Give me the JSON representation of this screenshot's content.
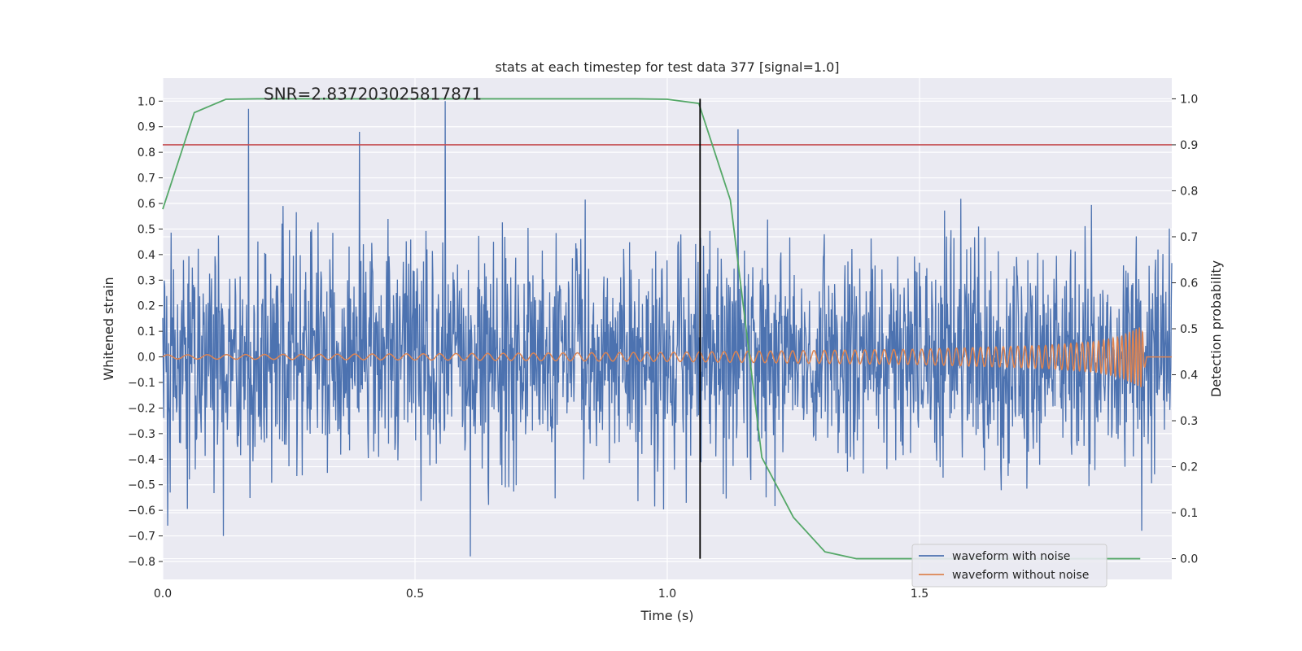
{
  "chart_data": {
    "type": "line",
    "title": "stats at each timestep for test data 377 [signal=1.0]",
    "xlabel": "Time (s)",
    "ylabel_left": "Whitened strain",
    "ylabel_right": "Detection probability",
    "xlim": [
      0.0,
      2.0
    ],
    "ylim_left": [
      -0.87,
      1.09
    ],
    "ylim_right": [
      -0.045,
      1.045
    ],
    "xticks": [
      "0.0",
      "0.5",
      "1.0",
      "1.5"
    ],
    "xtick_values": [
      0.0,
      0.5,
      1.0,
      1.5
    ],
    "yticks_left": [
      "−0.8",
      "−0.7",
      "−0.6",
      "−0.5",
      "−0.4",
      "−0.3",
      "−0.2",
      "−0.1",
      "0.0",
      "0.1",
      "0.2",
      "0.3",
      "0.4",
      "0.5",
      "0.6",
      "0.7",
      "0.8",
      "0.9",
      "1.0"
    ],
    "ytick_values_left": [
      -0.8,
      -0.7,
      -0.6,
      -0.5,
      -0.4,
      -0.3,
      -0.2,
      -0.1,
      0.0,
      0.1,
      0.2,
      0.3,
      0.4,
      0.5,
      0.6,
      0.7,
      0.8,
      0.9,
      1.0
    ],
    "yticks_right": [
      "0.0",
      "0.1",
      "0.2",
      "0.3",
      "0.4",
      "0.5",
      "0.6",
      "0.7",
      "0.8",
      "0.9",
      "1.0"
    ],
    "ytick_values_right": [
      0.0,
      0.1,
      0.2,
      0.3,
      0.4,
      0.5,
      0.6,
      0.7,
      0.8,
      0.9,
      1.0
    ],
    "grid": true,
    "legend_position": "bottom-right",
    "annotation": "SNR=2.837203025817871",
    "annotation_x": 0.2,
    "annotation_y": 1.0,
    "threshold_line": {
      "axis": "right",
      "value": 0.9,
      "color": "#c44e52"
    },
    "vertical_marker": {
      "x": 1.065,
      "ymin": 0.0,
      "ymax": 1.0,
      "axis": "right",
      "color": "#000000"
    },
    "series": [
      {
        "name": "waveform with noise",
        "axis": "left",
        "color": "#4c72b0",
        "x_start": 0.0,
        "x_end": 2.0,
        "n_points": 2048,
        "amplitude_std": 0.22,
        "peaks": [
          {
            "x": 0.17,
            "y": 0.97
          },
          {
            "x": 0.39,
            "y": 0.88
          },
          {
            "x": 0.56,
            "y": 1.0
          },
          {
            "x": 1.14,
            "y": 0.89
          },
          {
            "x": 0.61,
            "y": -0.78
          },
          {
            "x": 0.12,
            "y": -0.7
          },
          {
            "x": 0.01,
            "y": -0.66
          },
          {
            "x": 1.94,
            "y": -0.68
          }
        ]
      },
      {
        "name": "waveform without noise",
        "axis": "left",
        "color": "#dd8452",
        "x": [
          0.0,
          0.5,
          1.0,
          1.5,
          1.75,
          1.85,
          1.9,
          1.94,
          1.95,
          2.0
        ],
        "amplitude": [
          0.008,
          0.012,
          0.018,
          0.03,
          0.045,
          0.06,
          0.08,
          0.12,
          0.0,
          0.0
        ],
        "frequency_hz": [
          25,
          30,
          38,
          55,
          75,
          95,
          120,
          170,
          0,
          0
        ]
      },
      {
        "name": "Detection probability",
        "axis": "right",
        "color": "#55a868",
        "x": [
          0.0,
          0.0625,
          0.125,
          0.1875,
          0.25,
          0.3125,
          0.375,
          0.4375,
          0.5,
          0.5625,
          0.625,
          0.6875,
          0.75,
          0.8125,
          0.875,
          0.9375,
          1.0,
          1.0625,
          1.125,
          1.1875,
          1.25,
          1.3125,
          1.375,
          1.4375,
          1.5,
          1.5625,
          1.625,
          1.6875,
          1.75,
          1.8125,
          1.875,
          1.9375
        ],
        "y": [
          0.76,
          0.97,
          0.999,
          1.0,
          1.0,
          1.0,
          1.0,
          1.0,
          1.0,
          1.0,
          1.0,
          1.0,
          1.0,
          1.0,
          1.0,
          1.0,
          0.999,
          0.99,
          0.78,
          0.22,
          0.09,
          0.015,
          0.0,
          0.0,
          0.0,
          0.0,
          0.0,
          0.0,
          0.0,
          0.0,
          0.0,
          0.0
        ]
      }
    ]
  }
}
